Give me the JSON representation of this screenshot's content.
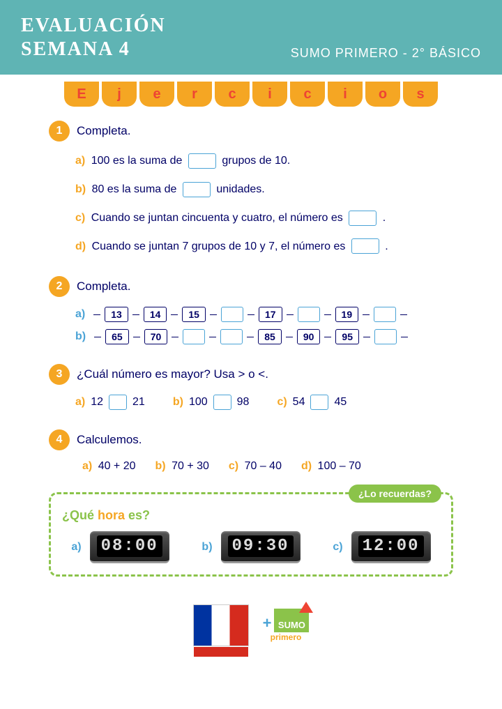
{
  "header": {
    "line1": "EVALUACIÓN",
    "line2": "SEMANA 4",
    "right": "SUMO PRIMERO - 2° BÁSICO"
  },
  "banner": [
    "E",
    "j",
    "e",
    "r",
    "c",
    "i",
    "c",
    "i",
    "o",
    "s"
  ],
  "q1": {
    "num": "1",
    "title": "Completa.",
    "a_pre": "100 es la suma de",
    "a_post": "grupos de 10.",
    "b_pre": "80 es la suma de",
    "b_post": "unidades.",
    "c_pre": "Cuando se juntan cincuenta y cuatro, el número es",
    "c_post": ".",
    "d_pre": "Cuando se juntan 7 grupos de 10 y 7, el número es",
    "d_post": "."
  },
  "q2": {
    "num": "2",
    "title": "Completa.",
    "rowA": {
      "label": "a)",
      "cells": [
        {
          "v": "13",
          "f": true
        },
        {
          "v": "14",
          "f": true
        },
        {
          "v": "15",
          "f": true
        },
        {
          "v": "",
          "f": false
        },
        {
          "v": "17",
          "f": true
        },
        {
          "v": "",
          "f": false
        },
        {
          "v": "19",
          "f": true
        },
        {
          "v": "",
          "f": false
        }
      ]
    },
    "rowB": {
      "label": "b)",
      "cells": [
        {
          "v": "65",
          "f": true
        },
        {
          "v": "70",
          "f": true
        },
        {
          "v": "",
          "f": false
        },
        {
          "v": "",
          "f": false
        },
        {
          "v": "85",
          "f": true
        },
        {
          "v": "90",
          "f": true
        },
        {
          "v": "95",
          "f": true
        },
        {
          "v": "",
          "f": false
        }
      ]
    }
  },
  "q3": {
    "num": "3",
    "title": "¿Cuál número es mayor? Usa > o <.",
    "items": [
      {
        "label": "a)",
        "l": "12",
        "r": "21"
      },
      {
        "label": "b)",
        "l": "100",
        "r": "98"
      },
      {
        "label": "c)",
        "l": "54",
        "r": "45"
      }
    ]
  },
  "q4": {
    "num": "4",
    "title": "Calculemos.",
    "items": [
      {
        "label": "a)",
        "expr": "40 + 20"
      },
      {
        "label": "b)",
        "expr": "70 + 30"
      },
      {
        "label": "c)",
        "expr": "70 – 40"
      },
      {
        "label": "d)",
        "expr": "100 – 70"
      }
    ]
  },
  "remember": {
    "badge": "¿Lo recuerdas?",
    "title_q": "¿Qué ",
    "title_h": "hora",
    "title_e": " es?",
    "clocks": [
      {
        "label": "a)",
        "time": "08:00"
      },
      {
        "label": "b)",
        "time": "09:30"
      },
      {
        "label": "c)",
        "time": "12:00"
      }
    ]
  },
  "footer": {
    "sumo_top": "SUMO",
    "sumo_bot": "primero"
  }
}
